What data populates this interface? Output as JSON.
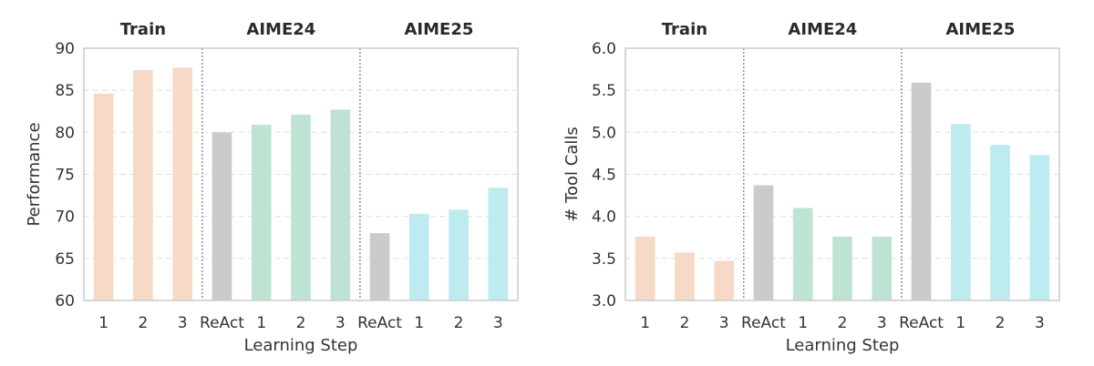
{
  "colors": {
    "train": "#f6d9c7",
    "aime24": "#bee3d3",
    "aime25": "#bdebef",
    "react": "#cbcbcb"
  },
  "chart_data": [
    {
      "type": "bar",
      "xlabel": "Learning Step",
      "ylabel": "Performance",
      "ylim": [
        60,
        90
      ],
      "yticks": [
        "60",
        "65",
        "70",
        "75",
        "80",
        "85",
        "90"
      ],
      "grid": true,
      "groups": [
        {
          "name": "Train",
          "categories": [
            "1",
            "2",
            "3"
          ],
          "values": [
            84.6,
            87.4,
            87.7
          ],
          "kinds": [
            "train",
            "train",
            "train"
          ]
        },
        {
          "name": "AIME24",
          "categories": [
            "ReAct",
            "1",
            "2",
            "3"
          ],
          "values": [
            80.0,
            80.9,
            82.1,
            82.7
          ],
          "kinds": [
            "react",
            "aime24",
            "aime24",
            "aime24"
          ]
        },
        {
          "name": "AIME25",
          "categories": [
            "ReAct",
            "1",
            "2",
            "3"
          ],
          "values": [
            68.0,
            70.3,
            70.8,
            73.4
          ],
          "kinds": [
            "react",
            "aime25",
            "aime25",
            "aime25"
          ]
        }
      ]
    },
    {
      "type": "bar",
      "xlabel": "Learning Step",
      "ylabel": "# Tool Calls",
      "ylim": [
        3.0,
        6.0
      ],
      "yticks": [
        "3.0",
        "3.5",
        "4.0",
        "4.5",
        "5.0",
        "5.5",
        "6.0"
      ],
      "grid": true,
      "groups": [
        {
          "name": "Train",
          "categories": [
            "1",
            "2",
            "3"
          ],
          "values": [
            3.76,
            3.57,
            3.47
          ],
          "kinds": [
            "train",
            "train",
            "train"
          ]
        },
        {
          "name": "AIME24",
          "categories": [
            "ReAct",
            "1",
            "2",
            "3"
          ],
          "values": [
            4.37,
            4.1,
            3.76,
            3.76
          ],
          "kinds": [
            "react",
            "aime24",
            "aime24",
            "aime24"
          ]
        },
        {
          "name": "AIME25",
          "categories": [
            "ReAct",
            "1",
            "2",
            "3"
          ],
          "values": [
            5.59,
            5.1,
            4.85,
            4.73
          ],
          "kinds": [
            "react",
            "aime25",
            "aime25",
            "aime25"
          ]
        }
      ]
    }
  ]
}
